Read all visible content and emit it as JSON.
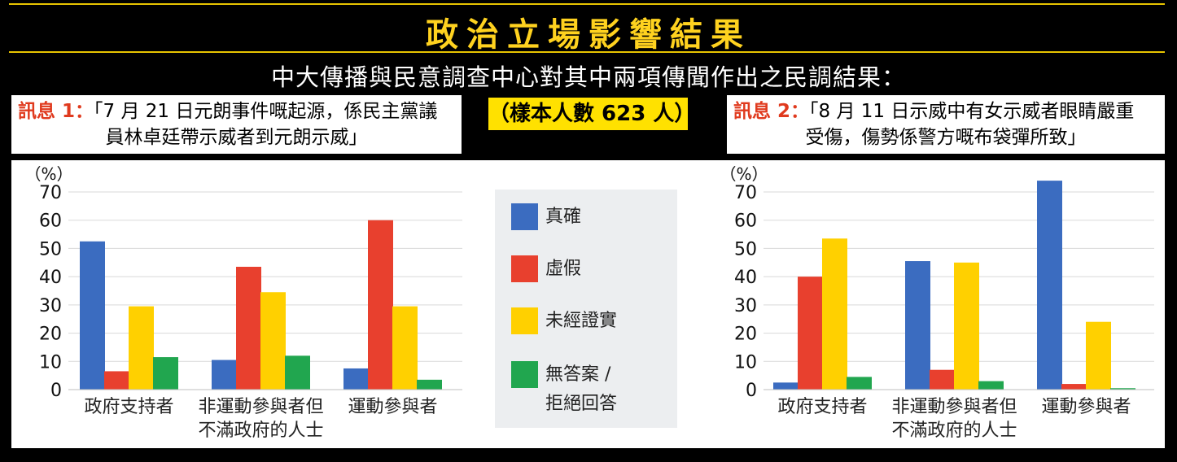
{
  "header": {
    "title": "政治立場影響結果",
    "subtitle": "中大傳播與民意調查中心對其中兩項傳聞作出之民調結果："
  },
  "message1": {
    "label": "訊息 1：",
    "line1": "「7 月 21 日元朗事件嘅起源，係民主黨議",
    "line2": "員林卓廷帶示威者到元朗示威」"
  },
  "message2": {
    "label": "訊息 2：",
    "line1": "「8 月 11 日示威中有女示威者眼睛嚴重",
    "line2": "受傷，傷勢係警方嘅布袋彈所致」"
  },
  "sample": "（樣本人數 623 人）",
  "legend": [
    {
      "label": "真確",
      "color": "#3b6cc0"
    },
    {
      "label": "虛假",
      "color": "#e8402e"
    },
    {
      "label": "未經證實",
      "color": "#ffd000"
    },
    {
      "label": "無答案 /",
      "label2": "拒絕回答",
      "color": "#21a64f"
    }
  ],
  "chart_data": [
    {
      "type": "bar",
      "ylabel": "（%）",
      "ylim": [
        0,
        70
      ],
      "yticks": [
        0,
        10,
        20,
        30,
        40,
        50,
        60,
        70
      ],
      "categories": [
        [
          "政府支持者"
        ],
        [
          "非運動參與者但",
          "不滿政府的人士"
        ],
        [
          "運動參與者"
        ]
      ],
      "series": [
        {
          "name": "真確",
          "color": "#3b6cc0",
          "values": [
            52.5,
            10.5,
            7.5
          ]
        },
        {
          "name": "虛假",
          "color": "#e8402e",
          "values": [
            6.5,
            43.5,
            60
          ]
        },
        {
          "name": "未經證實",
          "color": "#ffd000",
          "values": [
            29.5,
            34.5,
            29.5
          ]
        },
        {
          "name": "無答案 / 拒絕回答",
          "color": "#21a64f",
          "values": [
            11.5,
            12,
            3.5
          ]
        }
      ]
    },
    {
      "type": "bar",
      "ylabel": "（%）",
      "ylim": [
        0,
        70
      ],
      "yticks": [
        0,
        10,
        20,
        30,
        40,
        50,
        60,
        70
      ],
      "categories": [
        [
          "政府支持者"
        ],
        [
          "非運動參與者但",
          "不滿政府的人士"
        ],
        [
          "運動參與者"
        ]
      ],
      "series": [
        {
          "name": "真確",
          "color": "#3b6cc0",
          "values": [
            2.5,
            45.5,
            74
          ]
        },
        {
          "name": "虛假",
          "color": "#e8402e",
          "values": [
            40,
            7,
            2
          ]
        },
        {
          "name": "未經證實",
          "color": "#ffd000",
          "values": [
            53.5,
            45,
            24
          ]
        },
        {
          "name": "無答案 / 拒絕回答",
          "color": "#21a64f",
          "values": [
            4.5,
            3,
            0.5
          ]
        }
      ]
    }
  ]
}
